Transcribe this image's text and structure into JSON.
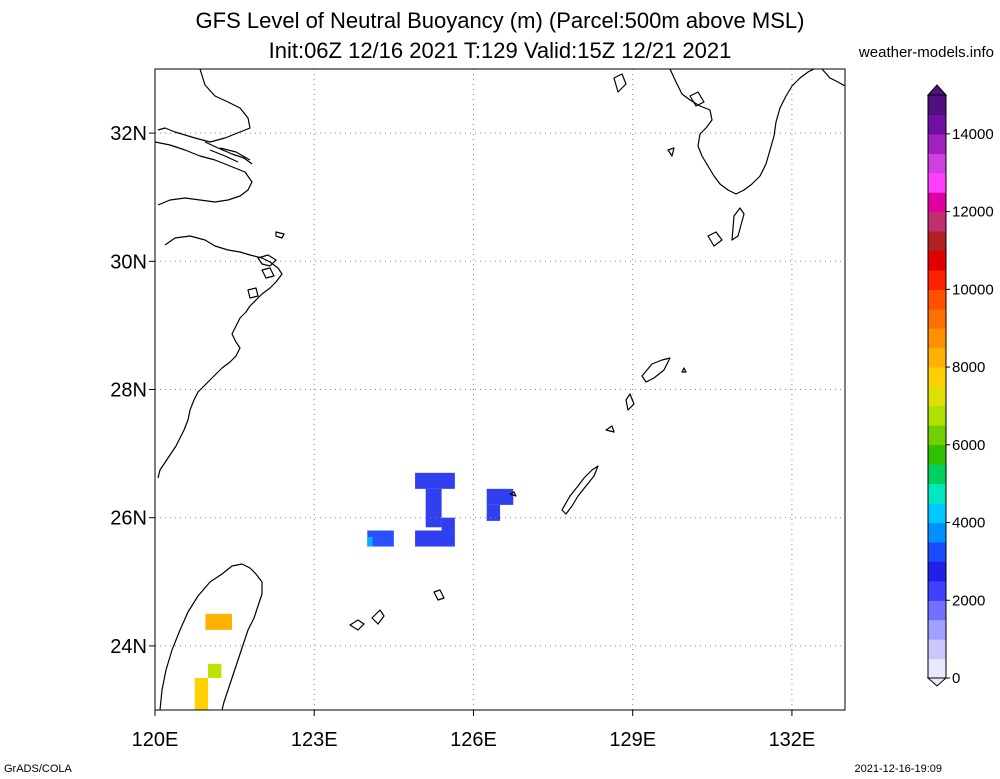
{
  "title": {
    "line1": "GFS Level of Neutral Buoyancy (m) (Parcel:500m above MSL)",
    "line2": "Init:06Z 12/16 2021 T:129 Valid:15Z 12/21 2021"
  },
  "site_label": "weather-models.info",
  "credit": "GrADS/COLA",
  "timestamp": "2021-12-16-19:09",
  "map": {
    "lon_range": [
      120,
      133
    ],
    "lat_range": [
      23,
      33
    ],
    "lon_ticks": [
      {
        "value": 120,
        "label": "120E"
      },
      {
        "value": 123,
        "label": "123E"
      },
      {
        "value": 126,
        "label": "126E"
      },
      {
        "value": 129,
        "label": "129E"
      },
      {
        "value": 132,
        "label": "132E"
      }
    ],
    "lat_ticks": [
      {
        "value": 24,
        "label": "24N"
      },
      {
        "value": 26,
        "label": "26N"
      },
      {
        "value": 28,
        "label": "28N"
      },
      {
        "value": 30,
        "label": "30N"
      },
      {
        "value": 32,
        "label": "32N"
      }
    ],
    "grid": "dotted",
    "coastline_color": "#000000"
  },
  "colorbar": {
    "min": 0,
    "max": 15000,
    "labels": [
      "0",
      "2000",
      "4000",
      "6000",
      "8000",
      "10000",
      "12000",
      "14000"
    ],
    "colors": [
      "#e8e8ff",
      "#c8c8ff",
      "#a0a0ff",
      "#7070ff",
      "#4040ff",
      "#2020e8",
      "#1a4cff",
      "#0090ff",
      "#00c8ff",
      "#00e8c0",
      "#00d060",
      "#30c000",
      "#70d000",
      "#b0e000",
      "#e0e000",
      "#ffd000",
      "#ffb000",
      "#ff9000",
      "#ff7000",
      "#ff5000",
      "#ff2000",
      "#e00000",
      "#b02020",
      "#c03070",
      "#e000a0",
      "#ff40ff",
      "#d040e0",
      "#a020c0",
      "#7010a0",
      "#501080"
    ]
  },
  "lnb_patches": [
    {
      "lon_min": 124.0,
      "lon_max": 124.5,
      "lat_min": 25.55,
      "lat_max": 25.8,
      "value": 2000,
      "color": "#2a50ff"
    },
    {
      "lon_min": 124.0,
      "lon_max": 124.1,
      "lat_min": 25.55,
      "lat_max": 25.7,
      "value": 3000,
      "color": "#00b0ff"
    },
    {
      "lon_min": 124.9,
      "lon_max": 125.65,
      "lat_min": 26.45,
      "lat_max": 26.7,
      "value": 1500,
      "color": "#3040f0"
    },
    {
      "lon_min": 125.1,
      "lon_max": 125.4,
      "lat_min": 25.85,
      "lat_max": 26.45,
      "value": 1500,
      "color": "#3040f0"
    },
    {
      "lon_min": 124.9,
      "lon_max": 125.65,
      "lat_min": 25.55,
      "lat_max": 25.8,
      "value": 1500,
      "color": "#3040f0"
    },
    {
      "lon_min": 125.4,
      "lon_max": 125.65,
      "lat_min": 25.8,
      "lat_max": 26.0,
      "value": 1500,
      "color": "#3040f0"
    },
    {
      "lon_min": 126.25,
      "lon_max": 126.75,
      "lat_min": 26.2,
      "lat_max": 26.45,
      "value": 1500,
      "color": "#3040f0"
    },
    {
      "lon_min": 126.25,
      "lon_max": 126.5,
      "lat_min": 25.95,
      "lat_max": 26.2,
      "value": 1500,
      "color": "#3040f0"
    },
    {
      "lon_min": 120.95,
      "lon_max": 121.45,
      "lat_min": 24.25,
      "lat_max": 24.5,
      "value": 8500,
      "color": "#ffb000"
    },
    {
      "lon_min": 121.0,
      "lon_max": 121.25,
      "lat_min": 23.5,
      "lat_max": 23.72,
      "value": 6500,
      "color": "#c0e000"
    },
    {
      "lon_min": 120.75,
      "lon_max": 121.0,
      "lat_min": 23.0,
      "lat_max": 23.5,
      "value": 8000,
      "color": "#ffd000"
    }
  ]
}
